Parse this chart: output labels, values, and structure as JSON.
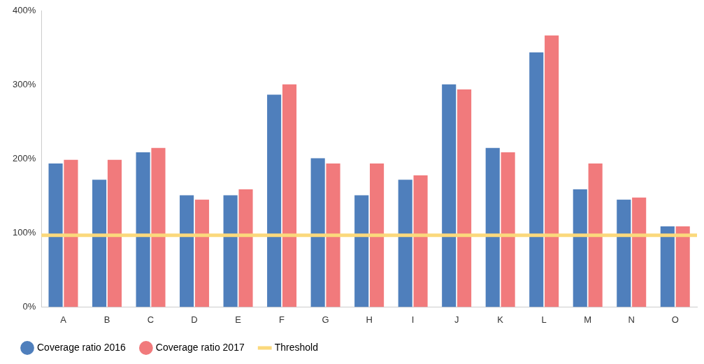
{
  "chart_data": {
    "type": "bar",
    "categories": [
      "A",
      "B",
      "C",
      "D",
      "E",
      "F",
      "G",
      "H",
      "I",
      "J",
      "K",
      "L",
      "M",
      "N",
      "O"
    ],
    "series": [
      {
        "name": "Coverage ratio 2016",
        "color": "#4f7fbc",
        "values": [
          194,
          172,
          209,
          151,
          151,
          287,
          201,
          151,
          172,
          301,
          215,
          344,
          159,
          145,
          109
        ]
      },
      {
        "name": "Coverage ratio 2017",
        "color": "#f17a7c",
        "values": [
          199,
          199,
          215,
          145,
          159,
          301,
          194,
          194,
          178,
          294,
          209,
          367,
          194,
          148,
          109
        ]
      }
    ],
    "ylim": [
      0,
      400
    ],
    "yticks": [
      {
        "value": 0,
        "label": "0%"
      },
      {
        "value": 100,
        "label": "100%"
      },
      {
        "value": 200,
        "label": "200%"
      },
      {
        "value": 300,
        "label": "300%"
      },
      {
        "value": 400,
        "label": "400%"
      }
    ],
    "ref_lines": [
      {
        "axis": "y",
        "value": 97,
        "label": "Threshold",
        "color": "#fbd97c"
      }
    ],
    "grid": false,
    "legend": "bottom left"
  }
}
